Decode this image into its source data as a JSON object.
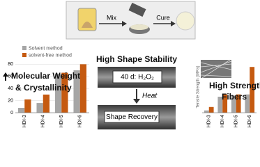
{
  "process": {
    "mix": "Mix",
    "cure": "Cure"
  },
  "left_text": {
    "line1": "Molecular Weight",
    "line2": "& Crystallinity"
  },
  "middle": {
    "title": "High Shape Stability",
    "condition": "40 d: H₂O₂",
    "heat": "Heat",
    "result": "Shape Recovery"
  },
  "right_text": {
    "line1": "High Strength",
    "line2": "Fibers"
  },
  "chart_data": [
    {
      "type": "bar",
      "categories": [
        "HDI-3",
        "HDI-4",
        "HDI-5",
        "HDI-6"
      ],
      "series": [
        {
          "name": "Solvent method",
          "color": "#a6a6a6",
          "values": [
            8,
            16,
            64,
            70
          ]
        },
        {
          "name": "solvent-free method",
          "color": "#c55a11",
          "values": [
            22,
            30,
            66,
            80
          ]
        }
      ],
      "ylim": [
        0,
        85
      ],
      "yticks": [
        0,
        20,
        40,
        60,
        80
      ]
    },
    {
      "type": "bar",
      "y_label": "Tensile Strength (MPa)",
      "categories": [
        "HDI-3",
        "HDI-4",
        "HDI-5",
        "HDI-6"
      ],
      "series": [
        {
          "name": "Solvent method",
          "color": "#a6a6a6",
          "values": [
            2,
            14,
            15,
            16
          ]
        },
        {
          "name": "solvent-free method",
          "color": "#c55a11",
          "values": [
            5,
            16,
            16,
            40
          ]
        }
      ],
      "ylim": [
        0,
        45
      ]
    }
  ]
}
